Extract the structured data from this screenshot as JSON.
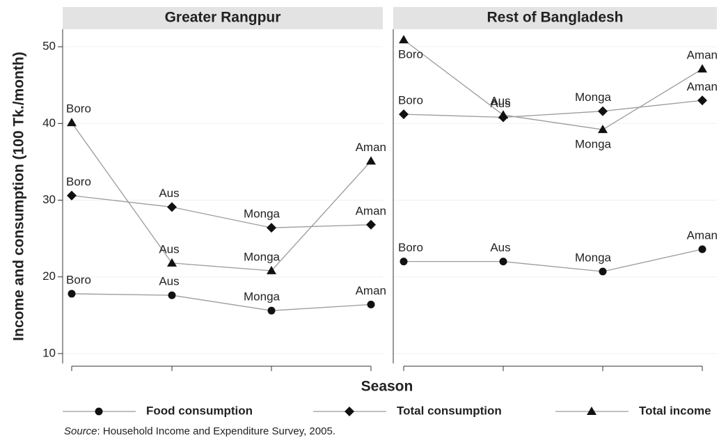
{
  "chart_data": {
    "type": "line",
    "y_label": "Income and consumption (100 Tk./month)",
    "x_label": "Season",
    "categories": [
      "Boro",
      "Aus",
      "Monga",
      "Aman"
    ],
    "ylim": [
      8.9,
      52.1
    ],
    "yticks": [
      10,
      20,
      30,
      40,
      50
    ],
    "grid": true,
    "line_color": "#9a9a9a",
    "marker_color": "#111111",
    "series": [
      {
        "name": "Food consumption",
        "marker": "circle"
      },
      {
        "name": "Total consumption",
        "marker": "diamond"
      },
      {
        "name": "Total income",
        "marker": "triangle"
      }
    ],
    "panels": [
      {
        "title": "Greater Rangpur",
        "values": [
          [
            17.8,
            17.6,
            15.6,
            16.4
          ],
          [
            30.6,
            29.1,
            26.4,
            26.8
          ],
          [
            40.1,
            21.8,
            20.8,
            35.1
          ]
        ]
      },
      {
        "title": "Rest of Bangladesh",
        "values": [
          [
            22.0,
            22.0,
            20.7,
            23.6
          ],
          [
            41.2,
            40.8,
            41.6,
            43.0
          ],
          [
            50.9,
            41.1,
            39.2,
            47.1
          ]
        ]
      }
    ],
    "source": {
      "label": "Source",
      "text": ": Household Income and Expenditure Survey, 2005."
    }
  }
}
